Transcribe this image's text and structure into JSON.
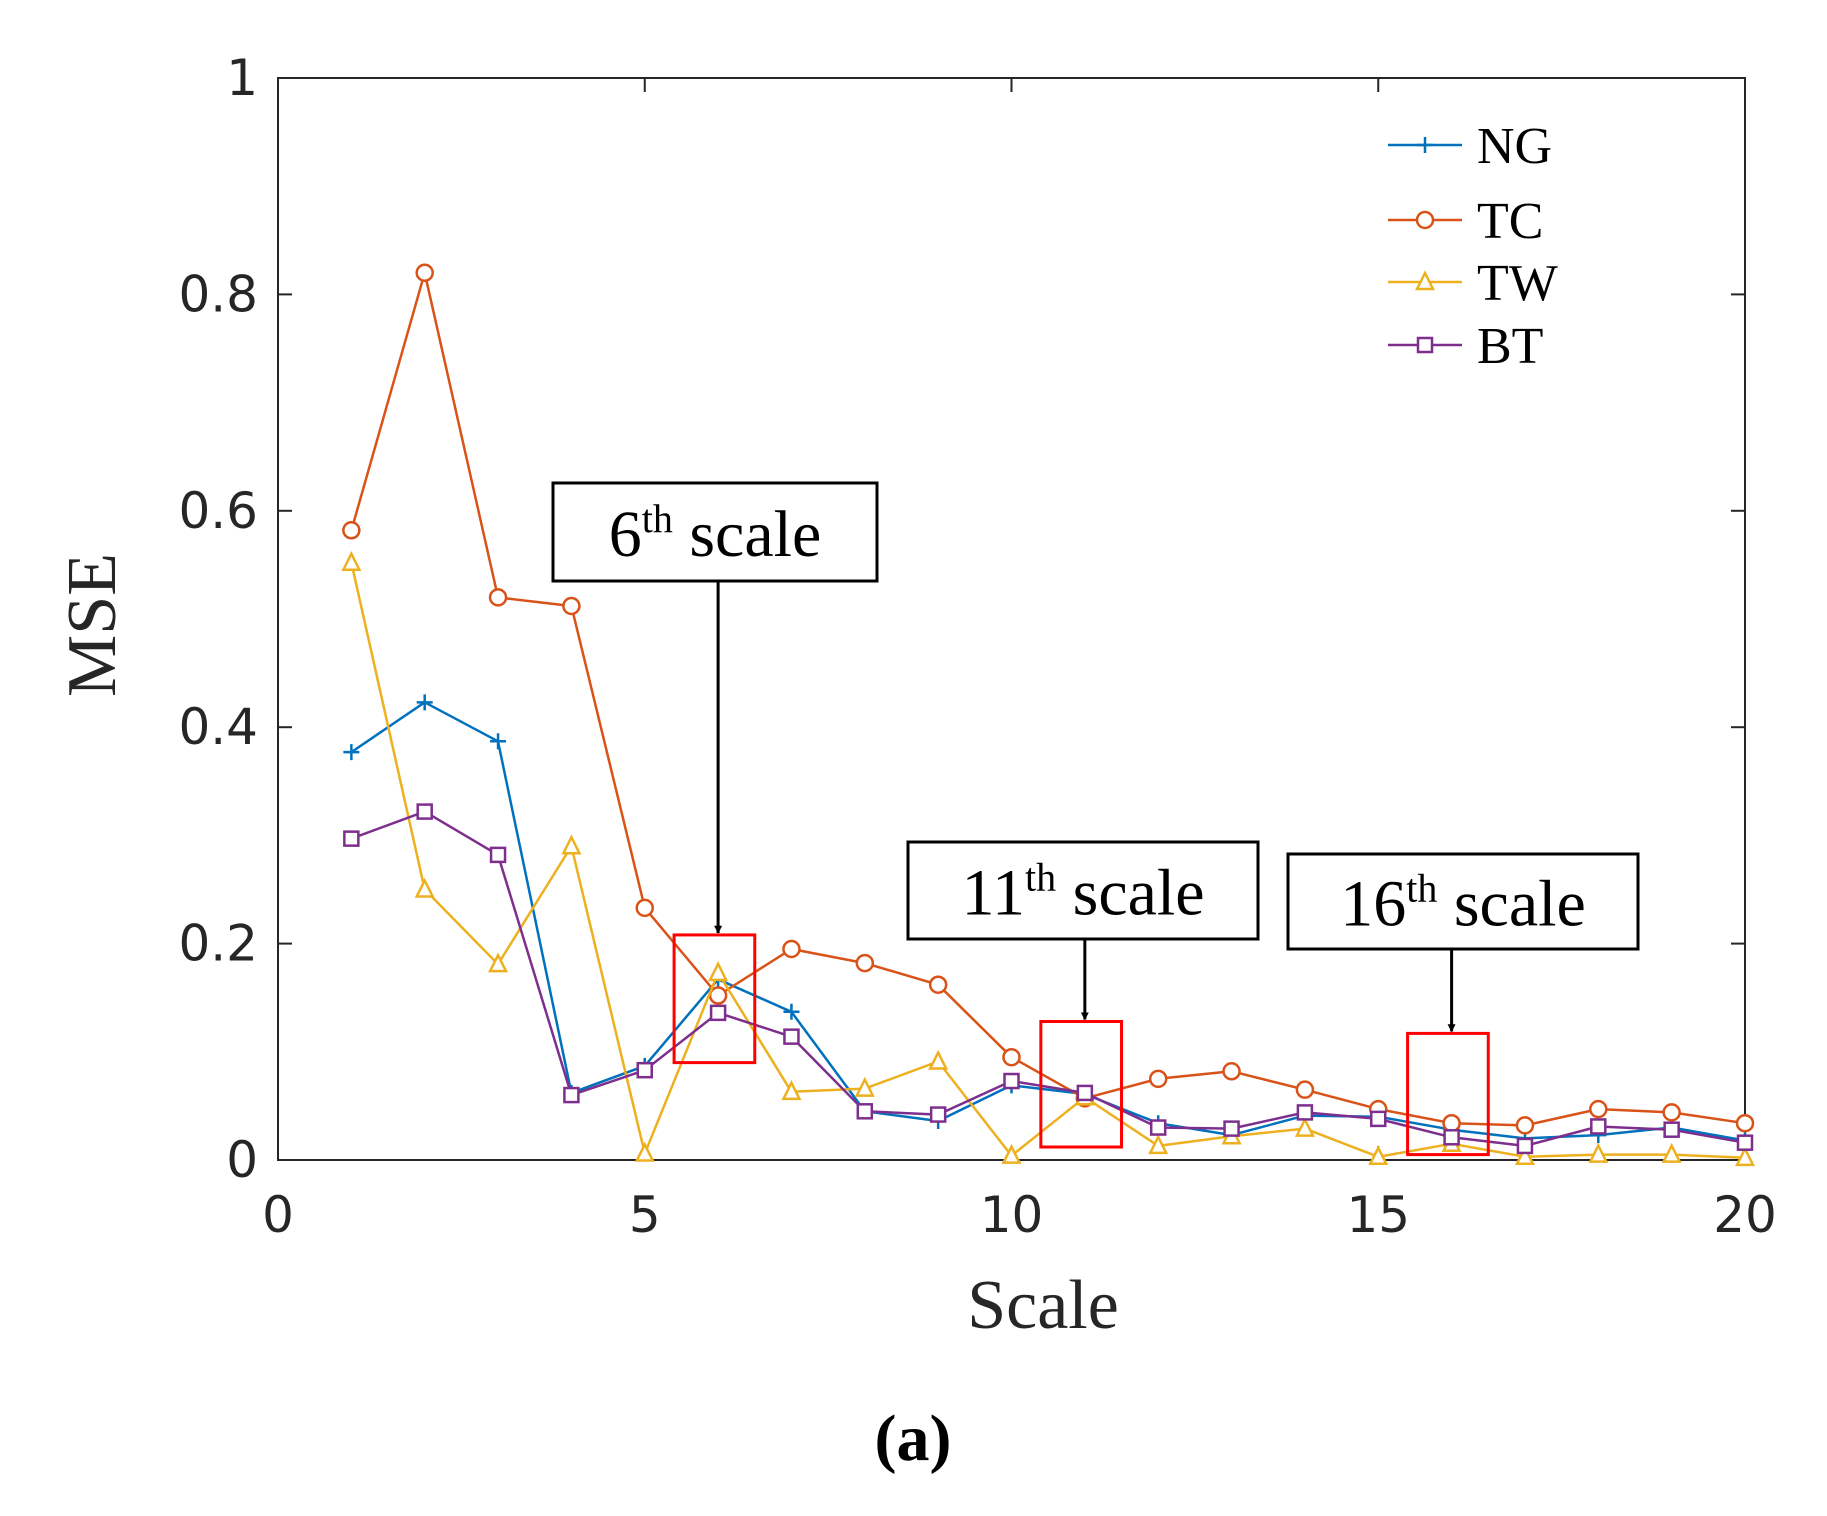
{
  "chart_data": {
    "type": "line",
    "xlabel": "Scale",
    "ylabel": "MSE",
    "xlim": [
      0,
      20
    ],
    "ylim": [
      0,
      1
    ],
    "xticks": [
      0,
      5,
      10,
      15,
      20
    ],
    "xtick_labels": [
      "0",
      "5",
      "10",
      "15",
      "20"
    ],
    "yticks": [
      0,
      0.2,
      0.4,
      0.6,
      0.8,
      1
    ],
    "ytick_labels": [
      "0",
      "0.2",
      "0.4",
      "0.6",
      "0.8",
      "1"
    ],
    "grid": false,
    "legend_position": "top-right",
    "x": [
      1,
      2,
      3,
      4,
      5,
      6,
      7,
      8,
      9,
      10,
      11,
      12,
      13,
      14,
      15,
      16,
      17,
      18,
      19,
      20
    ],
    "series": [
      {
        "name": "NG",
        "color": "#0072BD",
        "marker": "plus",
        "values": [
          0.377,
          0.423,
          0.387,
          0.062,
          0.087,
          0.167,
          0.137,
          0.045,
          0.036,
          0.069,
          0.061,
          0.034,
          0.023,
          0.041,
          0.04,
          0.028,
          0.02,
          0.023,
          0.03,
          0.018
        ]
      },
      {
        "name": "TC",
        "color": "#D95319",
        "marker": "circle",
        "values": [
          0.582,
          0.82,
          0.52,
          0.512,
          0.233,
          0.152,
          0.195,
          0.182,
          0.162,
          0.095,
          0.057,
          0.075,
          0.082,
          0.065,
          0.047,
          0.034,
          0.032,
          0.047,
          0.044,
          0.034
        ]
      },
      {
        "name": "TW",
        "color": "#EDB120",
        "marker": "triangle",
        "values": [
          0.552,
          0.25,
          0.181,
          0.29,
          0.006,
          0.173,
          0.063,
          0.066,
          0.091,
          0.004,
          0.058,
          0.013,
          0.022,
          0.029,
          0.003,
          0.015,
          0.003,
          0.005,
          0.005,
          0.002
        ]
      },
      {
        "name": "BT",
        "color": "#7E2F8E",
        "marker": "square",
        "values": [
          0.297,
          0.322,
          0.282,
          0.06,
          0.083,
          0.136,
          0.114,
          0.045,
          0.042,
          0.073,
          0.062,
          0.03,
          0.029,
          0.044,
          0.038,
          0.021,
          0.013,
          0.031,
          0.028,
          0.016
        ]
      }
    ],
    "highlights": [
      {
        "x": [
          5.4,
          6.5
        ],
        "y": [
          0.09,
          0.208
        ]
      },
      {
        "x": [
          10.4,
          11.5
        ],
        "y": [
          0.012,
          0.128
        ]
      },
      {
        "x": [
          15.4,
          16.5
        ],
        "y": [
          0.005,
          0.117
        ]
      }
    ],
    "annotations": [
      {
        "number": "6",
        "sup": "th",
        "text": " scale",
        "target_x": 6.0,
        "target_y": 0.208
      },
      {
        "number": "11",
        "sup": "th",
        "text": " scale",
        "target_x": 11.0,
        "target_y": 0.128
      },
      {
        "number": "16",
        "sup": "th",
        "text": " scale",
        "target_x": 16.0,
        "target_y": 0.117
      }
    ],
    "panel_label": "(a)"
  }
}
